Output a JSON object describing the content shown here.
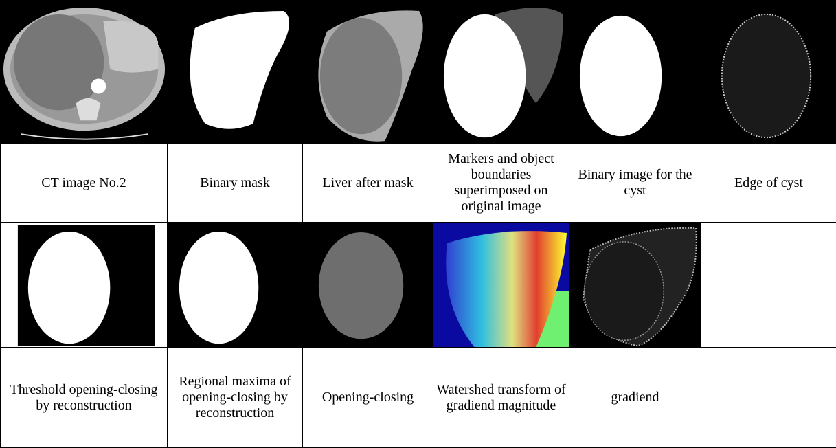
{
  "figure": {
    "captions_row1": [
      "CT image No.2",
      "Binary mask",
      "Liver after mask",
      "Markers and object boundaries superimposed on original image",
      "Binary image for the cyst",
      "Edge of cyst"
    ],
    "captions_row2": [
      "Threshold opening-closing by reconstruction",
      "Regional maxima of opening-closing by reconstruction",
      "Opening-closing",
      "Watershed transform of gradiend magnitude",
      "gradiend"
    ]
  }
}
